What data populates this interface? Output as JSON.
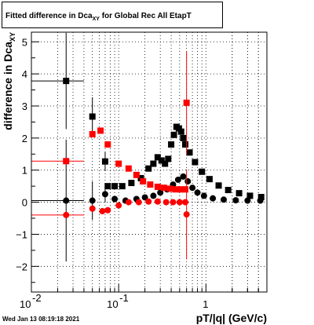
{
  "chart_data": {
    "type": "scatter",
    "title_main": "Fitted difference in Dca",
    "title_sub": "XY",
    "title_rest": " for Global Rec All EtapT",
    "xlabel": "pT/|q| (GeV/c)",
    "ylabel_main": "difference in Dca",
    "ylabel_sub": "XY",
    "x_scale": "log",
    "xlim": [
      0.01,
      5
    ],
    "ylim": [
      -2.8,
      5.3
    ],
    "grid": true,
    "x_major_ticks": [
      0.01,
      0.1,
      1
    ],
    "x_major_labels": [
      "10",
      "-2",
      "10",
      "-1",
      "1"
    ],
    "y_ticks": [
      -2,
      -1,
      0,
      1,
      2,
      3,
      4,
      5
    ],
    "y_tick_labels": [
      "−2",
      "−1",
      "0",
      "1",
      "2",
      "3",
      "4",
      "5"
    ],
    "series": [
      {
        "color": "#000000",
        "marker": "square",
        "points": [
          {
            "x": 0.025,
            "y": 3.78,
            "yerr": 1.5,
            "xerr_lo": 0.015,
            "xerr_hi": 0.015
          },
          {
            "x": 0.05,
            "y": 2.67,
            "yerr": 0.6
          },
          {
            "x": 0.07,
            "y": 1.27,
            "yerr": 0.3
          },
          {
            "x": 0.075,
            "y": 0.5
          },
          {
            "x": 0.09,
            "y": 0.5
          },
          {
            "x": 0.11,
            "y": 0.5
          },
          {
            "x": 0.14,
            "y": 0.6
          },
          {
            "x": 0.18,
            "y": 0.75
          },
          {
            "x": 0.22,
            "y": 1.05
          },
          {
            "x": 0.25,
            "y": 1.2
          },
          {
            "x": 0.28,
            "y": 1.4
          },
          {
            "x": 0.31,
            "y": 1.3
          },
          {
            "x": 0.34,
            "y": 1.2
          },
          {
            "x": 0.37,
            "y": 1.35
          },
          {
            "x": 0.4,
            "y": 1.8
          },
          {
            "x": 0.43,
            "y": 2.1
          },
          {
            "x": 0.46,
            "y": 2.35
          },
          {
            "x": 0.49,
            "y": 2.3
          },
          {
            "x": 0.52,
            "y": 2.2
          },
          {
            "x": 0.55,
            "y": 2.0
          },
          {
            "x": 0.58,
            "y": 1.8
          },
          {
            "x": 0.65,
            "y": 1.55
          },
          {
            "x": 0.75,
            "y": 1.25
          },
          {
            "x": 0.9,
            "y": 0.95
          },
          {
            "x": 1.1,
            "y": 0.72
          },
          {
            "x": 1.4,
            "y": 0.52
          },
          {
            "x": 1.8,
            "y": 0.38
          },
          {
            "x": 2.4,
            "y": 0.28
          },
          {
            "x": 3.2,
            "y": 0.2
          },
          {
            "x": 4.3,
            "y": 0.16
          }
        ]
      },
      {
        "color": "#000000",
        "marker": "circle",
        "points": [
          {
            "x": 0.025,
            "y": 0.05,
            "yerr": 1.9,
            "xerr_lo": 0.015,
            "xerr_hi": 0.015
          },
          {
            "x": 0.05,
            "y": 0.05,
            "yerr": 0.6
          },
          {
            "x": 0.07,
            "y": 0.25,
            "yerr": 0.25
          },
          {
            "x": 0.09,
            "y": 0.1
          },
          {
            "x": 0.12,
            "y": 0.05
          },
          {
            "x": 0.16,
            "y": 0.1
          },
          {
            "x": 0.2,
            "y": 0.15
          },
          {
            "x": 0.25,
            "y": 0.2
          },
          {
            "x": 0.3,
            "y": 0.3
          },
          {
            "x": 0.36,
            "y": 0.4
          },
          {
            "x": 0.42,
            "y": 0.55
          },
          {
            "x": 0.48,
            "y": 0.7
          },
          {
            "x": 0.55,
            "y": 0.8
          },
          {
            "x": 0.62,
            "y": 0.65
          },
          {
            "x": 0.7,
            "y": 0.45
          },
          {
            "x": 0.8,
            "y": 0.3
          },
          {
            "x": 0.95,
            "y": 0.2
          },
          {
            "x": 1.2,
            "y": 0.12
          },
          {
            "x": 1.6,
            "y": 0.08
          },
          {
            "x": 2.2,
            "y": 0.06
          },
          {
            "x": 3.0,
            "y": 0.05
          },
          {
            "x": 4.2,
            "y": 0.05
          }
        ]
      },
      {
        "color": "#ff0000",
        "marker": "square",
        "points": [
          {
            "x": 0.025,
            "y": 1.28,
            "xerr_lo": 0.015,
            "xerr_hi": 0.015
          },
          {
            "x": 0.05,
            "y": 2.12
          },
          {
            "x": 0.062,
            "y": 2.23
          },
          {
            "x": 0.075,
            "y": 1.8
          },
          {
            "x": 0.1,
            "y": 1.2
          },
          {
            "x": 0.13,
            "y": 1.05
          },
          {
            "x": 0.16,
            "y": 0.85
          },
          {
            "x": 0.19,
            "y": 0.65
          },
          {
            "x": 0.23,
            "y": 0.55
          },
          {
            "x": 0.28,
            "y": 0.48
          },
          {
            "x": 0.33,
            "y": 0.45
          },
          {
            "x": 0.39,
            "y": 0.42
          },
          {
            "x": 0.45,
            "y": 0.4
          },
          {
            "x": 0.52,
            "y": 0.4
          },
          {
            "x": 0.58,
            "y": 0.4
          },
          {
            "x": 0.6,
            "y": 3.1,
            "yerr": 1.6
          }
        ]
      },
      {
        "color": "#ff0000",
        "marker": "circle",
        "points": [
          {
            "x": 0.025,
            "y": -0.4,
            "xerr_lo": 0.015,
            "xerr_hi": 0.015
          },
          {
            "x": 0.05,
            "y": -0.2
          },
          {
            "x": 0.065,
            "y": -0.28
          },
          {
            "x": 0.075,
            "y": -0.25
          },
          {
            "x": 0.1,
            "y": -0.1
          },
          {
            "x": 0.13,
            "y": 0.0
          },
          {
            "x": 0.17,
            "y": 0.0
          },
          {
            "x": 0.22,
            "y": 0.02
          },
          {
            "x": 0.28,
            "y": 0.02
          },
          {
            "x": 0.35,
            "y": 0.0
          },
          {
            "x": 0.42,
            "y": 0.0
          },
          {
            "x": 0.5,
            "y": 0.0
          },
          {
            "x": 0.58,
            "y": 0.0
          },
          {
            "x": 0.6,
            "y": -0.38,
            "yerr": 1.4
          }
        ]
      }
    ]
  },
  "timestamp": "Wed Jan 13 08:19:18 2021"
}
